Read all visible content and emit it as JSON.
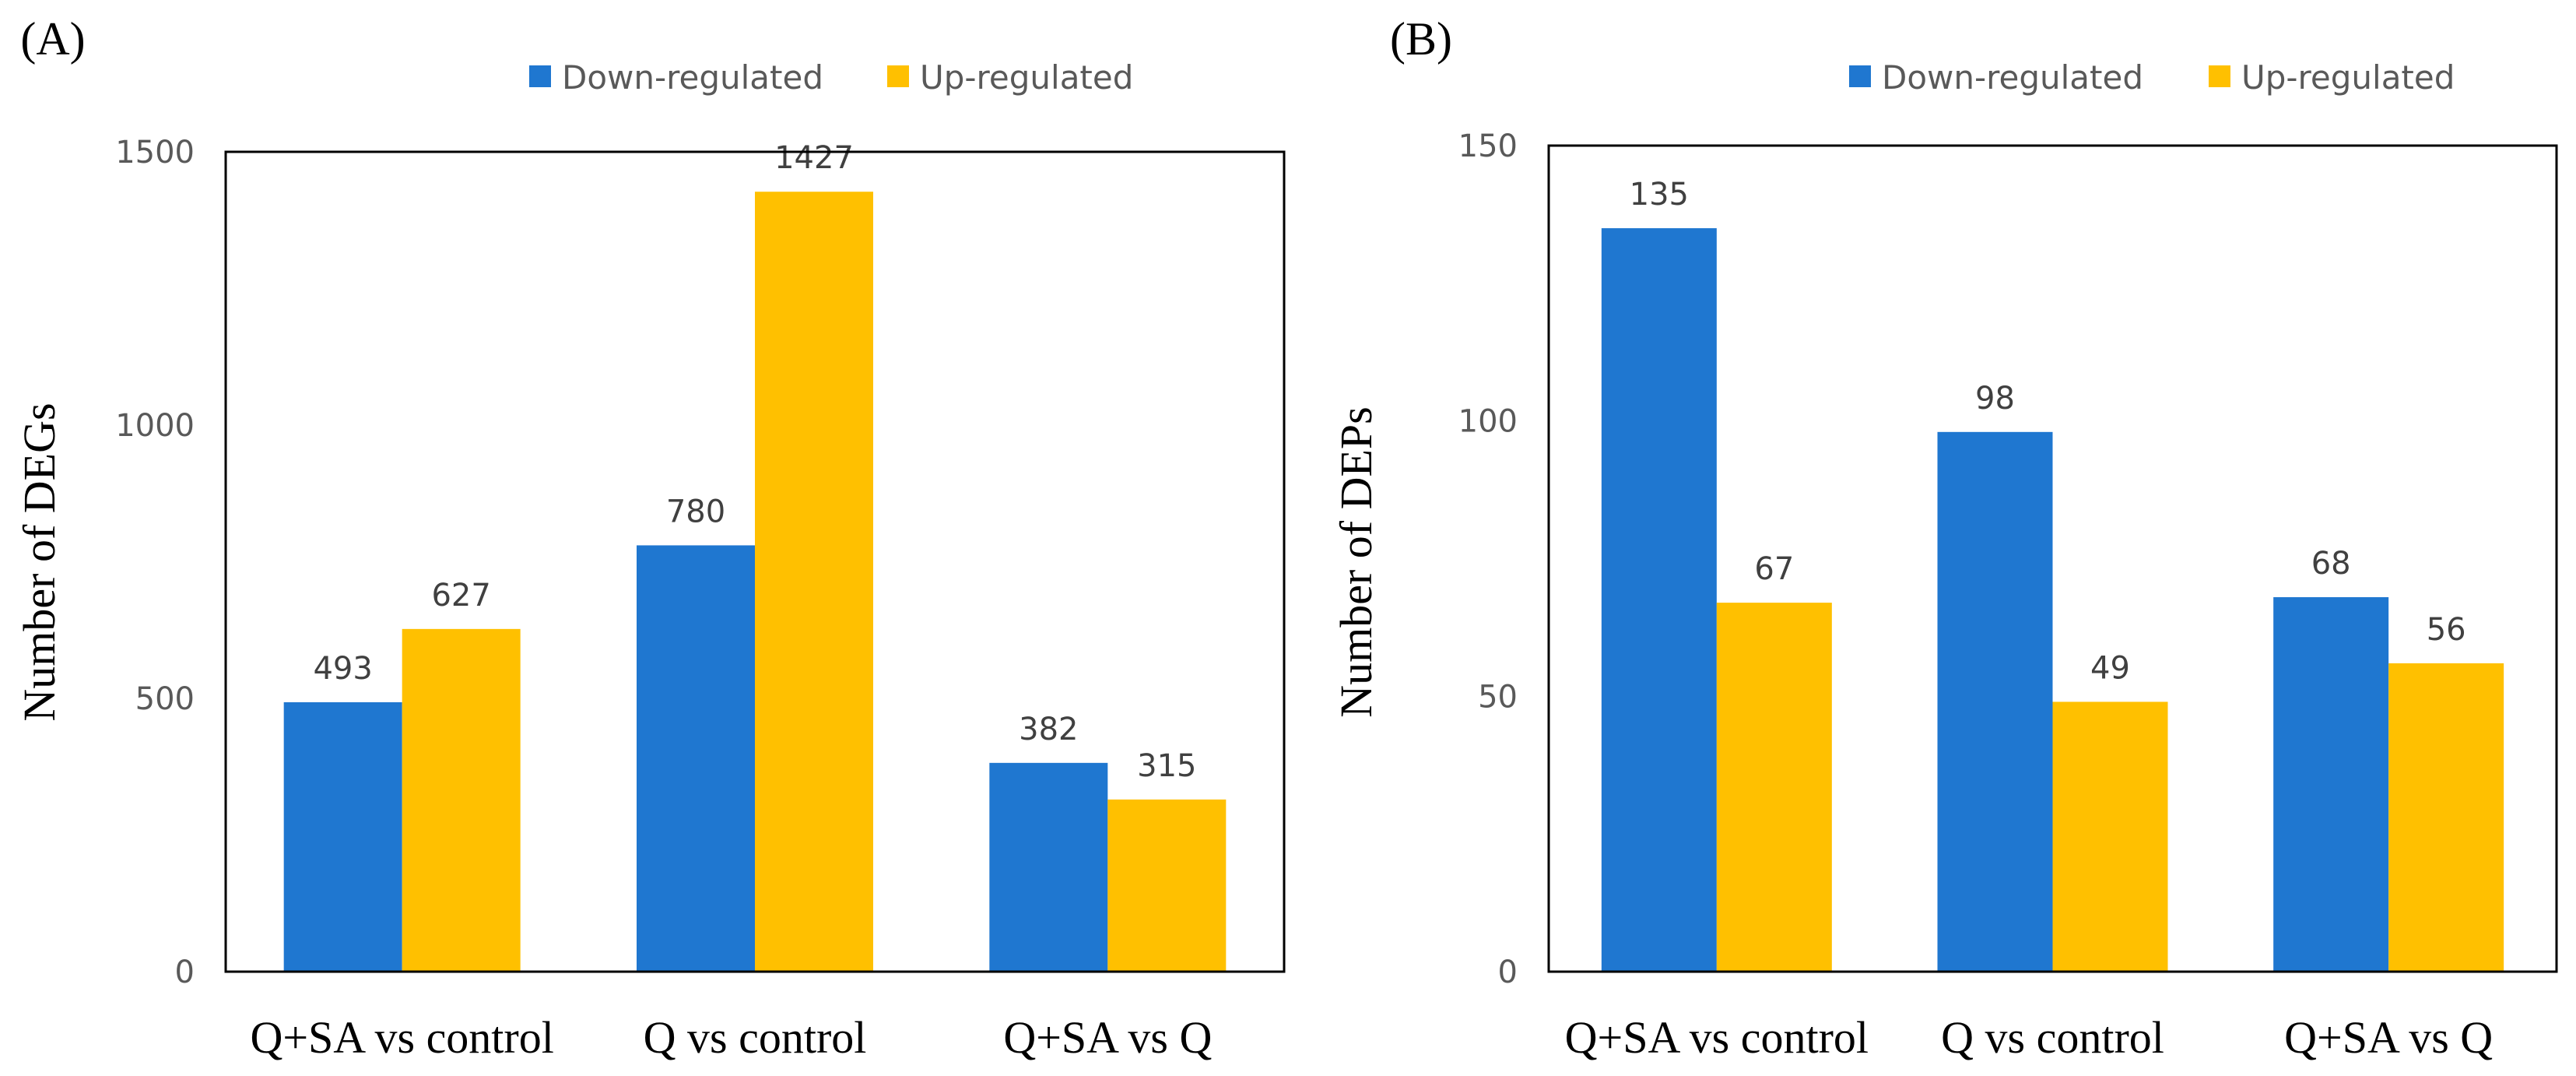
{
  "chart_data": [
    {
      "type": "bar",
      "panel_label": "(A)",
      "ylabel": "Number of DEGs",
      "xlabel": "",
      "categories": [
        "Q+SA vs control",
        "Q vs control",
        "Q+SA vs Q"
      ],
      "ylim": [
        0,
        1500
      ],
      "yticks": [
        0,
        500,
        1000,
        1500
      ],
      "ytick_labels": [
        "0",
        "500",
        "1000",
        "1500"
      ],
      "legend_position": "top",
      "series": [
        {
          "name": "Down-regulated",
          "color": "#1f77d0",
          "values": [
            493,
            780,
            382
          ],
          "labels": [
            "493",
            "780",
            "382"
          ]
        },
        {
          "name": "Up-regulated",
          "color": "#ffc000",
          "values": [
            627,
            1427,
            315
          ],
          "labels": [
            "627",
            "1427",
            "315"
          ]
        }
      ]
    },
    {
      "type": "bar",
      "panel_label": "(B)",
      "ylabel": "Number of DEPs",
      "xlabel": "",
      "categories": [
        "Q+SA vs control",
        "Q vs control",
        "Q+SA vs Q"
      ],
      "ylim": [
        0,
        150
      ],
      "yticks": [
        0,
        50,
        100,
        150
      ],
      "ytick_labels": [
        "0",
        "50",
        "100",
        "150"
      ],
      "legend_position": "top",
      "series": [
        {
          "name": "Down-regulated",
          "color": "#1f77d0",
          "values": [
            135,
            98,
            68
          ],
          "labels": [
            "135",
            "98",
            "68"
          ]
        },
        {
          "name": "Up-regulated",
          "color": "#ffc000",
          "values": [
            67,
            49,
            56
          ],
          "labels": [
            "67",
            "49",
            "56"
          ]
        }
      ]
    }
  ]
}
